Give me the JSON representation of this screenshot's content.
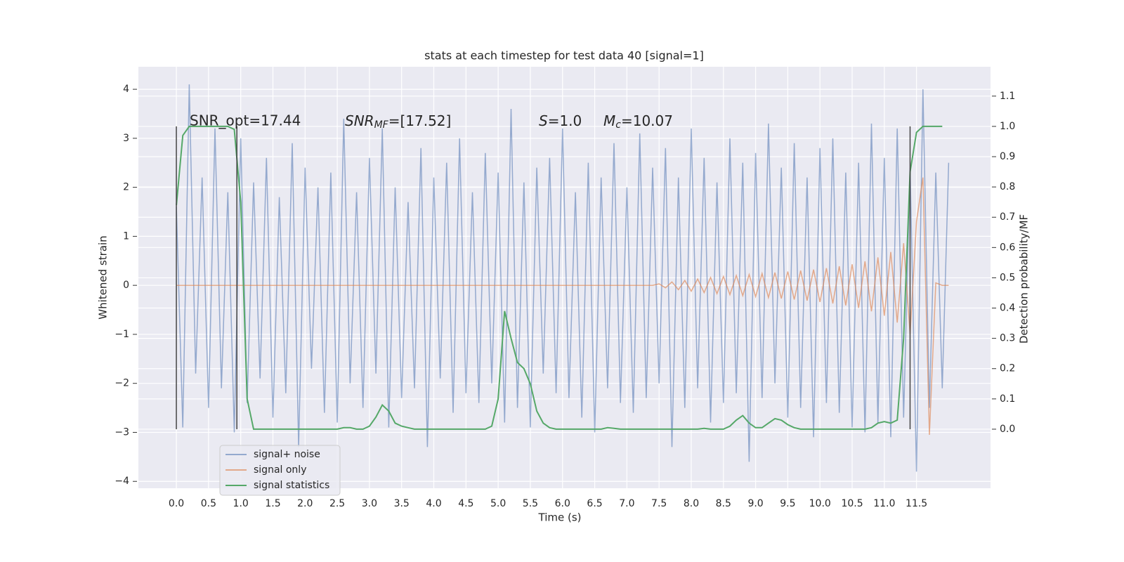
{
  "chart_data": {
    "type": "line",
    "title": "stats at each timestep for test data 40 [signal=1]",
    "xlabel": "Time (s)",
    "ylabel": "Whitened strain",
    "y2label": "Detection probability/MF",
    "grid": true,
    "legend": "lower left",
    "background": "#eaeaf2",
    "xlim": [
      -0.59,
      12.65
    ],
    "ylim": [
      -4.14,
      4.46
    ],
    "y2lim": [
      -0.195,
      1.197
    ],
    "xticks": [
      {
        "value": 0,
        "label": "0.0"
      },
      {
        "value": 0.5,
        "label": "0.5"
      },
      {
        "value": 1,
        "label": "1.0"
      },
      {
        "value": 1.5,
        "label": "1.5"
      },
      {
        "value": 2,
        "label": "2.0"
      },
      {
        "value": 2.5,
        "label": "2.5"
      },
      {
        "value": 3,
        "label": "3.0"
      },
      {
        "value": 3.5,
        "label": "3.5"
      },
      {
        "value": 4,
        "label": "4.0"
      },
      {
        "value": 4.5,
        "label": "4.5"
      },
      {
        "value": 5,
        "label": "5.0"
      },
      {
        "value": 5.5,
        "label": "5.5"
      },
      {
        "value": 6,
        "label": "6.0"
      },
      {
        "value": 6.5,
        "label": "6.5"
      },
      {
        "value": 7,
        "label": "7.0"
      },
      {
        "value": 7.5,
        "label": "7.5"
      },
      {
        "value": 8,
        "label": "8.0"
      },
      {
        "value": 8.5,
        "label": "8.5"
      },
      {
        "value": 9,
        "label": "9.0"
      },
      {
        "value": 9.5,
        "label": "9.5"
      },
      {
        "value": 10,
        "label": "10.0"
      },
      {
        "value": 10.5,
        "label": "10.5"
      },
      {
        "value": 11,
        "label": "11.0"
      },
      {
        "value": 11.5,
        "label": "11.5"
      }
    ],
    "yticks": [
      4,
      3,
      2,
      1,
      0,
      {
        "value": -1,
        "label": "−1"
      },
      {
        "value": -2,
        "label": "−2"
      },
      {
        "value": -3,
        "label": "−3"
      },
      {
        "value": -4,
        "label": "−4"
      }
    ],
    "y2ticks": [
      {
        "value": 0,
        "label": "0.0"
      },
      {
        "value": 0.1,
        "label": "0.1"
      },
      {
        "value": 0.2,
        "label": "0.2"
      },
      {
        "value": 0.3,
        "label": "0.3"
      },
      {
        "value": 0.4,
        "label": "0.4"
      },
      {
        "value": 0.5,
        "label": "0.5"
      },
      {
        "value": 0.6,
        "label": "0.6"
      },
      {
        "value": 0.7,
        "label": "0.7"
      },
      {
        "value": 0.8,
        "label": "0.8"
      },
      {
        "value": 0.9,
        "label": "0.9"
      },
      {
        "value": 1,
        "label": "1.0"
      },
      {
        "value": 1.1,
        "label": "1.1"
      }
    ],
    "annotations": [
      {
        "text": "SNR_opt=17.44"
      },
      {
        "main": "SNR",
        "sub": "MF",
        "rest": "=[17.52]"
      },
      {
        "main": "S",
        "rest": "=1.0"
      },
      {
        "main": "M",
        "sub": "c",
        "rest": "=10.07"
      }
    ],
    "vlines": {
      "x": [
        0,
        0.94,
        11.4
      ],
      "ymin": 0,
      "ymax": 1,
      "color": "#444444"
    },
    "x": [
      0,
      0.1,
      0.2,
      0.3,
      0.4,
      0.5,
      0.6,
      0.7,
      0.8,
      0.9,
      1,
      1.1,
      1.2,
      1.3,
      1.4,
      1.5,
      1.6,
      1.7,
      1.8,
      1.9,
      2,
      2.1,
      2.2,
      2.3,
      2.4,
      2.5,
      2.6,
      2.7,
      2.8,
      2.9,
      3,
      3.1,
      3.2,
      3.3,
      3.4,
      3.5,
      3.6,
      3.7,
      3.8,
      3.9,
      4,
      4.1,
      4.2,
      4.3,
      4.4,
      4.5,
      4.6,
      4.7,
      4.8,
      4.9,
      5,
      5.1,
      5.2,
      5.3,
      5.4,
      5.5,
      5.6,
      5.7,
      5.8,
      5.9,
      6,
      6.1,
      6.2,
      6.3,
      6.4,
      6.5,
      6.6,
      6.7,
      6.8,
      6.9,
      7,
      7.1,
      7.2,
      7.3,
      7.4,
      7.5,
      7.6,
      7.7,
      7.8,
      7.9,
      8,
      8.1,
      8.2,
      8.3,
      8.4,
      8.5,
      8.6,
      8.7,
      8.8,
      8.9,
      9,
      9.1,
      9.2,
      9.3,
      9.4,
      9.5,
      9.6,
      9.7,
      9.8,
      9.9,
      10,
      10.1,
      10.2,
      10.3,
      10.4,
      10.5,
      10.6,
      10.7,
      10.8,
      10.9,
      11,
      11.1,
      11.2,
      11.3,
      11.4,
      11.5,
      11.6,
      11.7,
      11.8,
      11.9,
      12
    ],
    "series": [
      {
        "name": "signal+ noise",
        "color": "#4c72b0",
        "opacity": 0.55,
        "values": [
          1.6,
          -2.9,
          4.1,
          -1.8,
          2.2,
          -2.5,
          3.2,
          -2.1,
          1.9,
          -3.0,
          3.0,
          -2.4,
          2.1,
          -1.9,
          2.6,
          -2.7,
          1.8,
          -2.2,
          2.9,
          -3.3,
          2.4,
          -1.7,
          2.0,
          -2.6,
          2.3,
          -2.8,
          3.4,
          -2.0,
          1.9,
          -2.5,
          2.6,
          -1.8,
          3.2,
          -2.9,
          2.0,
          -2.3,
          1.7,
          -2.1,
          2.8,
          -3.3,
          2.2,
          -1.9,
          2.5,
          -2.6,
          3.0,
          -2.2,
          1.9,
          -2.4,
          2.7,
          -2.0,
          2.3,
          -2.8,
          3.6,
          -2.5,
          2.1,
          -2.9,
          2.4,
          -1.8,
          2.6,
          -2.2,
          3.2,
          -2.3,
          1.9,
          -2.7,
          2.5,
          -3.0,
          2.2,
          -2.1,
          2.9,
          -2.4,
          2.0,
          -2.6,
          3.1,
          -2.3,
          2.4,
          -2.0,
          2.8,
          -3.3,
          2.2,
          -2.5,
          3.2,
          -2.1,
          2.6,
          -2.8,
          2.1,
          -2.4,
          3.0,
          -2.2,
          2.5,
          -3.6,
          2.7,
          -2.3,
          3.3,
          -2.0,
          2.4,
          -2.7,
          2.9,
          -2.5,
          2.2,
          -3.1,
          2.8,
          -2.4,
          3.0,
          -2.6,
          2.3,
          -2.9,
          2.5,
          -3.0,
          3.3,
          -2.8,
          2.6,
          -3.1,
          3.2,
          -2.7,
          2.4,
          -3.8,
          4.0,
          -2.5,
          2.3,
          -2.1,
          2.5
        ]
      },
      {
        "name": "signal only",
        "color": "#dd8452",
        "opacity": 0.65,
        "values": [
          0,
          0,
          0,
          0,
          0,
          0,
          0,
          0,
          0,
          0,
          0,
          0,
          0,
          0,
          0,
          0,
          0,
          0,
          0,
          0,
          0,
          0,
          0,
          0,
          0,
          0,
          0,
          0,
          0,
          0,
          0,
          0,
          0,
          0,
          0,
          0,
          0,
          0,
          0,
          0,
          0,
          0,
          0,
          0,
          0,
          0,
          0,
          0,
          0,
          0,
          0,
          0,
          0,
          0,
          0,
          0,
          0,
          0,
          0,
          0,
          0,
          0,
          0,
          0,
          0,
          0,
          0,
          0,
          0,
          0,
          0,
          0,
          0,
          0,
          0,
          0.03,
          -0.05,
          0.07,
          -0.09,
          0.1,
          -0.12,
          0.13,
          -0.15,
          0.16,
          -0.17,
          0.18,
          -0.19,
          0.2,
          -0.21,
          0.22,
          -0.23,
          0.24,
          -0.25,
          0.26,
          -0.27,
          0.28,
          -0.29,
          0.3,
          -0.31,
          0.32,
          -0.34,
          0.35,
          -0.37,
          0.39,
          -0.41,
          0.43,
          -0.46,
          0.49,
          -0.53,
          0.57,
          -0.62,
          0.68,
          -0.76,
          0.86,
          -1.0,
          1.3,
          2.2,
          -3.05,
          0.05,
          0,
          0
        ]
      },
      {
        "name": "signal statistics",
        "color": "#55a868",
        "opacity": 1,
        "axis": "y2",
        "values": [
          0.74,
          0.97,
          1.0,
          1.0,
          1.0,
          1.0,
          1.0,
          1.0,
          1.0,
          0.99,
          0.75,
          0.1,
          0,
          0,
          0,
          0,
          0,
          0,
          0,
          0,
          0,
          0,
          0,
          0,
          0,
          0,
          0.005,
          0.005,
          0,
          0,
          0.01,
          0.04,
          0.08,
          0.06,
          0.02,
          0.01,
          0.005,
          0,
          0,
          0,
          0,
          0,
          0,
          0,
          0,
          0,
          0,
          0,
          0,
          0.01,
          0.1,
          0.39,
          0.3,
          0.22,
          0.2,
          0.15,
          0.06,
          0.02,
          0.005,
          0,
          0,
          0,
          0,
          0,
          0,
          0,
          0,
          0.005,
          0.003,
          0,
          0,
          0,
          0,
          0,
          0,
          0,
          0,
          0,
          0,
          0,
          0,
          0,
          0.003,
          0,
          0,
          0,
          0.01,
          0.03,
          0.045,
          0.02,
          0.005,
          0.005,
          0.02,
          0.035,
          0.03,
          0.015,
          0.005,
          0,
          0,
          0,
          0,
          0,
          0,
          0,
          0,
          0,
          0,
          0,
          0.005,
          0.02,
          0.025,
          0.02,
          0.03,
          0.3,
          0.85,
          0.98,
          1.0,
          1.0,
          1.0,
          1.0,
          null
        ]
      }
    ]
  }
}
